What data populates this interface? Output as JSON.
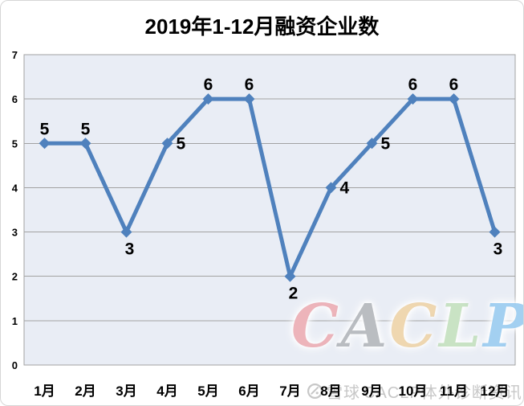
{
  "chart_data": {
    "type": "line",
    "title": "2019年1-12月融资企业数",
    "categories": [
      "1月",
      "2月",
      "3月",
      "4月",
      "5月",
      "6月",
      "7月",
      "8月",
      "9月",
      "10月",
      "11月",
      "12月"
    ],
    "series": [
      {
        "name": "融资企业数",
        "values": [
          5,
          5,
          3,
          5,
          6,
          6,
          2,
          4,
          5,
          6,
          6,
          3
        ]
      }
    ],
    "data_label_positions": [
      "above",
      "above",
      "below",
      "right",
      "above",
      "above",
      "below",
      "right",
      "right",
      "above",
      "above",
      "below"
    ],
    "ylim": [
      0,
      7
    ],
    "yticks": [
      0,
      1,
      2,
      3,
      4,
      5,
      6,
      7
    ],
    "grid": "horizontal",
    "legend_position": "none",
    "line_color": "#4F81BD",
    "marker": "diamond",
    "plot_bg_color": "#E9EDF5",
    "grid_color": "#A2A2A2",
    "label_color": "#000000"
  },
  "watermark_caclp": {
    "letters": [
      {
        "char": "C",
        "color": "rgba(222,118,130,0.55)"
      },
      {
        "char": "A",
        "color": "rgba(118,124,132,0.50)"
      },
      {
        "char": "C",
        "color": "rgba(224,176,98,0.50)"
      },
      {
        "char": "L",
        "color": "rgba(148,200,138,0.50)"
      },
      {
        "char": "P",
        "color": "rgba(88,170,230,0.55)"
      }
    ]
  },
  "watermark_footer": {
    "site": "雪球",
    "account": "CACLP体外诊断资讯",
    "color": "#C7C7C7"
  }
}
